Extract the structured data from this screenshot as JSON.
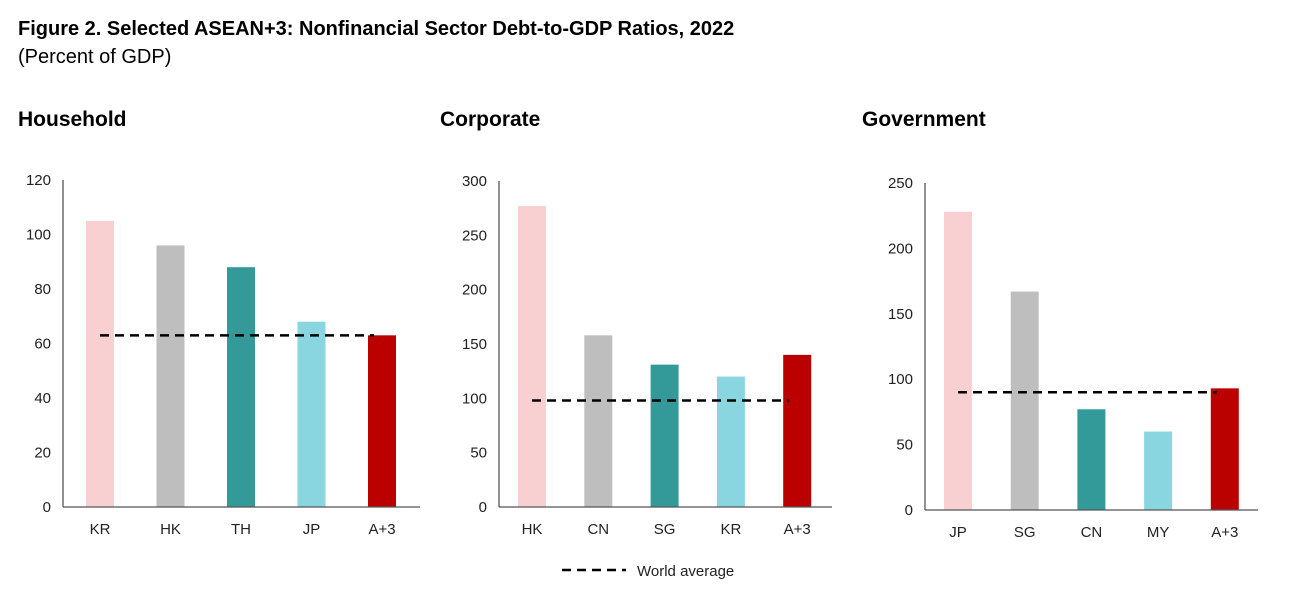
{
  "chart_data": [
    {
      "type": "bar",
      "title": "Household",
      "categories": [
        "KR",
        "HK",
        "TH",
        "JP",
        "A+3"
      ],
      "values": [
        105,
        96,
        88,
        68,
        63
      ],
      "colors": [
        "#F9D0D2",
        "#BEBEBE",
        "#339999",
        "#8AD6E0",
        "#BB0000"
      ],
      "world_average": 63,
      "ylim": [
        0,
        120
      ],
      "yticks": [
        0,
        20,
        40,
        60,
        80,
        100,
        120
      ],
      "grid": false
    },
    {
      "type": "bar",
      "title": "Corporate",
      "categories": [
        "HK",
        "CN",
        "SG",
        "KR",
        "A+3"
      ],
      "values": [
        277,
        158,
        131,
        120,
        140
      ],
      "colors": [
        "#F9D0D2",
        "#BEBEBE",
        "#339999",
        "#8AD6E0",
        "#BB0000"
      ],
      "world_average": 98,
      "ylim": [
        0,
        300
      ],
      "yticks": [
        0,
        50,
        100,
        150,
        200,
        250,
        300
      ],
      "grid": false
    },
    {
      "type": "bar",
      "title": "Government",
      "categories": [
        "JP",
        "SG",
        "CN",
        "MY",
        "A+3"
      ],
      "values": [
        228,
        167,
        77,
        60,
        93
      ],
      "colors": [
        "#F9D0D2",
        "#BEBEBE",
        "#339999",
        "#8AD6E0",
        "#BB0000"
      ],
      "world_average": 90,
      "ylim": [
        0,
        250
      ],
      "yticks": [
        0,
        50,
        100,
        150,
        200,
        250
      ],
      "grid": false
    }
  ],
  "figure": {
    "title": "Figure 2. Selected ASEAN+3: Nonfinancial Sector Debt-to-GDP Ratios, 2022",
    "subtitle": "(Percent of GDP)"
  },
  "legend": {
    "label": "World average",
    "position": "bottom-center",
    "style": "dashed",
    "color": "#000000"
  }
}
